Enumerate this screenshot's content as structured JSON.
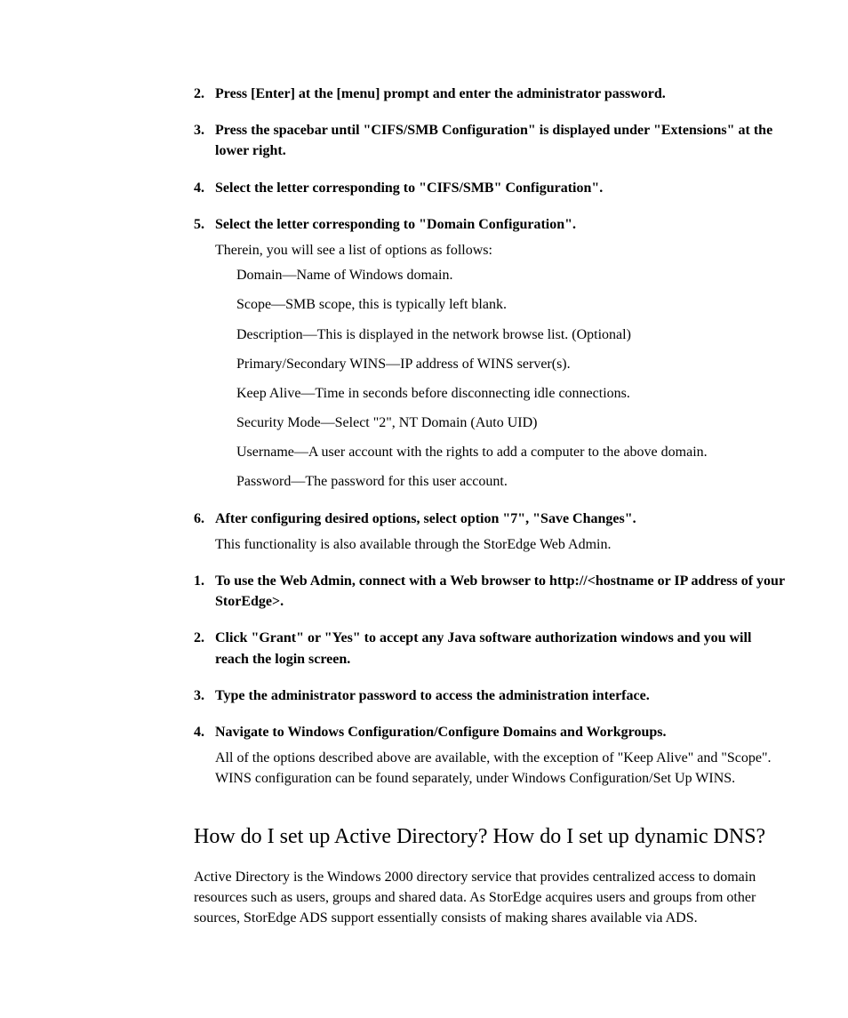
{
  "list1": [
    {
      "num": "2.",
      "head": "Press [Enter] at the [menu] prompt and enter the administrator password."
    },
    {
      "num": "3.",
      "head": "Press the spacebar until \"CIFS/SMB Configuration\" is displayed under \"Extensions\" at the lower right."
    },
    {
      "num": "4.",
      "head": "Select the letter corresponding to \"CIFS/SMB\" Configuration\"."
    },
    {
      "num": "5.",
      "head": "Select the letter corresponding to \"Domain Configuration\".",
      "body": "Therein, you will see a list of options as follows:",
      "sub": [
        "Domain—Name of Windows domain.",
        "Scope—SMB scope, this is typically left blank.",
        "Description—This is displayed in the network browse list. (Optional)",
        "Primary/Secondary WINS—IP address of WINS server(s).",
        "Keep Alive—Time in seconds before disconnecting idle connections.",
        "Security Mode—Select \"2\", NT Domain (Auto UID)",
        "Username—A user account with the rights to add a computer to the above domain.",
        "Password—The password for this user account."
      ]
    },
    {
      "num": "6.",
      "head": "After configuring desired options, select option \"7\", \"Save Changes\".",
      "avail": "This functionality is also available through the StorEdge Web Admin."
    }
  ],
  "list2": [
    {
      "num": "1.",
      "head": "To use the Web Admin, connect with a Web browser to http://<hostname or IP address of your StorEdge>."
    },
    {
      "num": "2.",
      "head": "Click \"Grant\" or \"Yes\" to accept any Java software authorization windows and you will reach the login screen."
    },
    {
      "num": "3.",
      "head": "Type the administrator password to access the administration interface."
    },
    {
      "num": "4.",
      "head": "Navigate to Windows Configuration/Configure Domains and Workgroups.",
      "body": "All of the options described above are available, with the exception of \"Keep Alive\" and \"Scope\". WINS configuration can be found separately, under Windows Configuration/Set Up WINS."
    }
  ],
  "heading": "How do I set up Active Directory? How do I set up dynamic DNS?",
  "para": "Active Directory is the Windows 2000 directory service that provides centralized access to domain resources such as users, groups and shared data. As StorEdge acquires users and groups from other sources, StorEdge ADS support essentially consists of making shares available via ADS."
}
